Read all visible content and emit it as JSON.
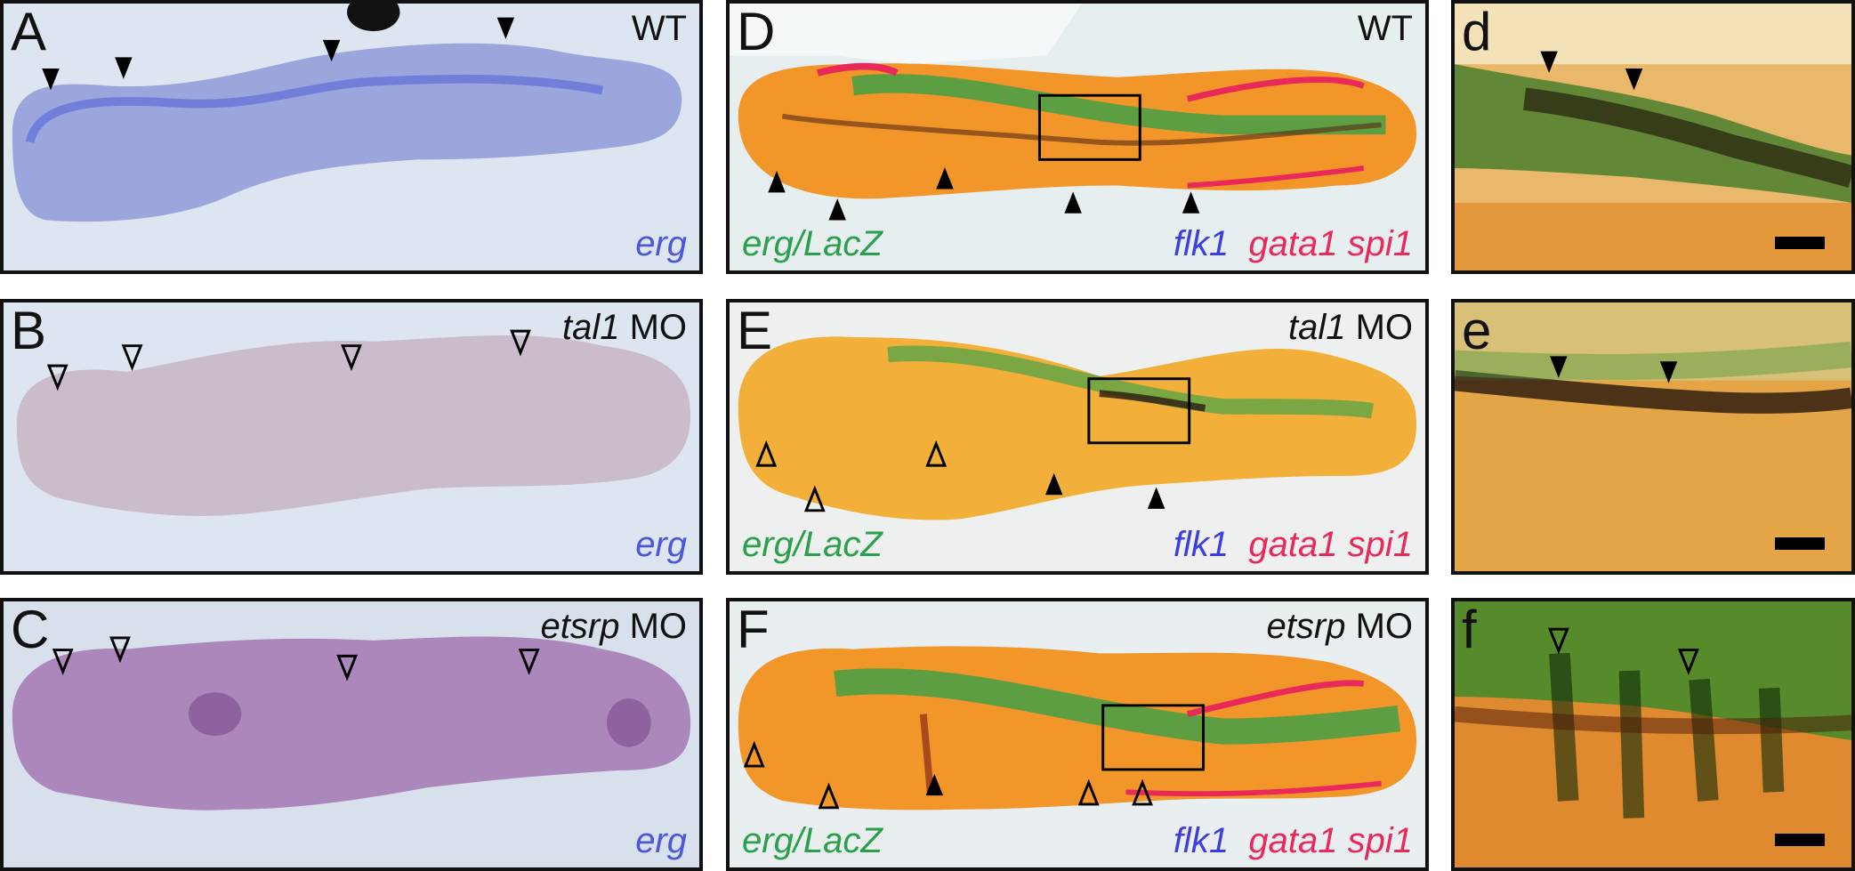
{
  "panels": {
    "A": {
      "letter": "A",
      "condition_main": "WT",
      "condition_suffix": "",
      "gene": "erg"
    },
    "B": {
      "letter": "B",
      "condition_main": "tal1",
      "condition_suffix": " MO",
      "gene": "erg"
    },
    "C": {
      "letter": "C",
      "condition_main": "etsrp",
      "condition_suffix": " MO",
      "gene": "erg"
    },
    "D": {
      "letter": "D",
      "condition_main": "WT",
      "condition_suffix": "",
      "legend_left": "erg/LacZ",
      "legend_flk1": "flk1",
      "legend_gata1": "gata1",
      "legend_spi1": "spi1"
    },
    "E": {
      "letter": "E",
      "condition_main": "tal1",
      "condition_suffix": " MO",
      "legend_left": "erg/LacZ",
      "legend_flk1": "flk1",
      "legend_gata1": "gata1",
      "legend_spi1": "spi1"
    },
    "F": {
      "letter": "F",
      "condition_main": "etsrp",
      "condition_suffix": " MO",
      "legend_left": "erg/LacZ",
      "legend_flk1": "flk1",
      "legend_gata1": "gata1",
      "legend_spi1": "spi1"
    },
    "d": {
      "letter": "d"
    },
    "e": {
      "letter": "e"
    },
    "f": {
      "letter": "f"
    }
  },
  "colors": {
    "erg_stain": "#4a57d8",
    "lacz_green": "#2aa04a",
    "flk1_blue": "#3c3ee0",
    "gata_red": "#e8295a",
    "tissue_orange": "#f2962a"
  }
}
